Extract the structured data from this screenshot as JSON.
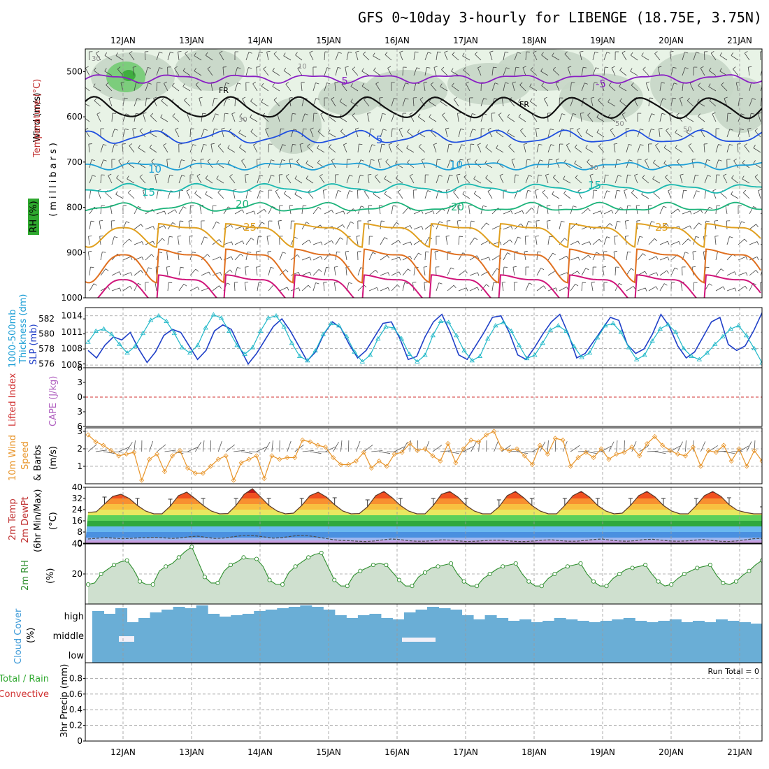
{
  "title": "GFS 0~10day 3-hourly for LIBENGE (18.75E, 3.75N)",
  "dates": [
    "12JAN",
    "13JAN",
    "14JAN",
    "15JAN",
    "16JAN",
    "17JAN",
    "18JAN",
    "19JAN",
    "20JAN",
    "21JAN"
  ],
  "run_total_label": "Run Total = 0",
  "colors": {
    "temp_purple": "#8a1fc4",
    "temp_blue": "#1f4fe0",
    "temp_cyan": "#1e9fd6",
    "temp_teal": "#19b8b0",
    "temp_green": "#1cb37a",
    "temp_gold": "#e0a020",
    "temp_orange": "#e07020",
    "temp_magenta": "#d0157a",
    "thickness": "#2040c8",
    "slp": "#20b8c8",
    "wind10": "#e8952a",
    "rh2m": "#2f8f2f",
    "cloud": "#6aaed6",
    "lifted_zero": "#d03030"
  },
  "chart_data": [
    {
      "panel": "upper-air",
      "type": "line",
      "ylabel_lines": [
        "Wind (m/s)",
        "Temperature (°C)",
        "RH (%)"
      ],
      "ylabel_units": "(millibars)",
      "y_ticks": [
        500,
        600,
        700,
        800,
        900,
        1000
      ],
      "ylim": [
        450,
        1000
      ],
      "isotherm_labels": [
        {
          "text": "-5",
          "p": 515
        },
        {
          "text": "-5",
          "p": 522
        },
        {
          "text": "5",
          "p": 650
        },
        {
          "text": "10",
          "p": 712
        },
        {
          "text": "10",
          "p": 705
        },
        {
          "text": "15",
          "p": 762
        },
        {
          "text": "15",
          "p": 755
        },
        {
          "text": "20",
          "p": 800
        },
        {
          "text": "20",
          "p": 800
        },
        {
          "text": "25",
          "p": 845
        },
        {
          "text": "25",
          "p": 845
        },
        {
          "text": "FR",
          "p": 555
        },
        {
          "text": "FR",
          "p": 575
        }
      ],
      "rh_contour_labels": [
        "30",
        "10",
        "30",
        "50",
        "50",
        "30"
      ],
      "isotherm_levels": [
        {
          "level": "-5",
          "p": 515,
          "color": "temp_purple"
        },
        {
          "level": "0",
          "p": 580,
          "color": "black"
        },
        {
          "level": "5",
          "p": 645,
          "color": "temp_blue"
        },
        {
          "level": "10",
          "p": 708,
          "color": "temp_cyan"
        },
        {
          "level": "15",
          "p": 758,
          "color": "temp_teal"
        },
        {
          "level": "20",
          "p": 800,
          "color": "temp_green"
        }
      ]
    },
    {
      "panel": "thickness-slp",
      "type": "line",
      "ylabel_left": [
        "1000-500mb",
        "Thickness (dm)"
      ],
      "ylabel_right": "SLP (mb)",
      "left_ticks": [
        576,
        578,
        580,
        582
      ],
      "right_ticks": [
        1005,
        1008,
        1011,
        1014
      ],
      "left_ylim": [
        575.5,
        583.5
      ],
      "right_ylim": [
        1004.5,
        1015.5
      ],
      "series": [
        {
          "name": "Thickness",
          "values": [
            577.8,
            576.8,
            578.5,
            579.6,
            579.2,
            580.2,
            578,
            576.2,
            577.6,
            579.8,
            580.6,
            580.2,
            578.4,
            576.6,
            577.8,
            580.4,
            581.2,
            580.6,
            578.2,
            576,
            577.4,
            579.2,
            581,
            582,
            580.4,
            578.4,
            576.4,
            577.6,
            580,
            581.6,
            580.8,
            578.6,
            576.8,
            577.8,
            579.6,
            581.4,
            581.6,
            579.4,
            576.6,
            577,
            579.6,
            581.6,
            582.6,
            580.2,
            577.2,
            576.6,
            578.4,
            580.2,
            582.2,
            582.4,
            580.2,
            577.2,
            576.6,
            578.2,
            580,
            581.6,
            582.6,
            580,
            576.8,
            577.4,
            579,
            580.6,
            582.2,
            581.8,
            578.6,
            577.4,
            578,
            580,
            582.6,
            581,
            578.4,
            576.8,
            577.6,
            579.6,
            581.6,
            582.2,
            578.6,
            577.8,
            578.4,
            580.4,
            582.8
          ]
        },
        {
          "name": "SLP",
          "values": [
            1009.2,
            1011.2,
            1011.6,
            1010.6,
            1008.8,
            1007.2,
            1008.4,
            1010.8,
            1013.2,
            1014,
            1013,
            1010.8,
            1008.2,
            1007.2,
            1008.6,
            1011.8,
            1014.2,
            1013.6,
            1011.2,
            1008.6,
            1007,
            1008.2,
            1011.2,
            1013.6,
            1014,
            1012,
            1009,
            1006.6,
            1005.8,
            1007.6,
            1010.6,
            1012.6,
            1012.2,
            1010.2,
            1007.4,
            1005.6,
            1006.8,
            1009.8,
            1012,
            1011.8,
            1009.8,
            1007,
            1005.6,
            1006.8,
            1010.4,
            1013,
            1012.8,
            1010.4,
            1007.6,
            1005.8,
            1006.6,
            1009.8,
            1012.2,
            1012.8,
            1011.2,
            1008.6,
            1006.2,
            1006.8,
            1009,
            1011.4,
            1012.2,
            1011.2,
            1008.4,
            1006.4,
            1007.2,
            1010,
            1012.2,
            1012.6,
            1011,
            1008.2,
            1006,
            1006.8,
            1009.4,
            1011.6,
            1012.4,
            1011,
            1008,
            1006.6,
            1006,
            1007.2,
            1008.8,
            1010.2,
            1011.6,
            1012.2,
            1010.4,
            1008,
            1005.4
          ]
        }
      ]
    },
    {
      "panel": "lifted-cape",
      "type": "line",
      "ylabel_left": "Lifted Index",
      "ylabel_right": "CAPE (J/kg)",
      "y_ticks": [
        -6,
        -3,
        0,
        3,
        6
      ],
      "y_tick_labels": [
        "6",
        "3",
        "0",
        "3",
        "6"
      ],
      "ylim": [
        -6,
        6
      ]
    },
    {
      "panel": "wind10m",
      "type": "line",
      "ylabel": [
        "10m Wind",
        "Speed",
        "& Barbs"
      ],
      "units": "(m/s)",
      "y_ticks": [
        1,
        2,
        3
      ],
      "ylim": [
        0,
        3.2
      ],
      "series": [
        {
          "name": "10m Wind Speed",
          "values": [
            2.8,
            2.4,
            2.2,
            1.9,
            1.6,
            1.7,
            1.8,
            0.2,
            1.4,
            1.7,
            0.7,
            1.6,
            1.9,
            0.9,
            0.6,
            0.6,
            1.0,
            1.4,
            1.6,
            0.2,
            1.2,
            1.4,
            1.6,
            0.3,
            1.6,
            1.4,
            1.5,
            1.5,
            2.5,
            2.4,
            2.2,
            2.1,
            1.5,
            1.1,
            1.1,
            1.3,
            1.8,
            0.9,
            1.3,
            1.0,
            1.7,
            1.8,
            2.3,
            1.9,
            2.0,
            1.6,
            1.3,
            2.3,
            1.2,
            2.0,
            2.5,
            2.4,
            2.8,
            3.0,
            2.0,
            1.9,
            2.0,
            1.6,
            1.1,
            2.2,
            1.7,
            2.6,
            2.5,
            1.0,
            1.5,
            1.8,
            1.5,
            2.0,
            1.4,
            1.7,
            1.8,
            2.1,
            1.6,
            2.3,
            2.7,
            2.2,
            1.9,
            1.7,
            1.6,
            2.1,
            1.0,
            1.9,
            1.8,
            2.2,
            1.3,
            2.0,
            1.0,
            1.9,
            1.3
          ]
        }
      ]
    },
    {
      "panel": "temp2m",
      "type": "area",
      "ylabel": [
        "2m Temp",
        "2m DewPt",
        "(6hr Min/Max)"
      ],
      "units": "(°C)",
      "y_ticks": [
        0,
        8,
        16,
        24,
        32,
        40
      ],
      "ylim": [
        0,
        40
      ],
      "series": [
        {
          "name": "2m Temp",
          "values": [
            22,
            22.5,
            28,
            33.5,
            35,
            32,
            27,
            23,
            21,
            21,
            26.5,
            34,
            36.5,
            32,
            27,
            23,
            21,
            21.2,
            27,
            35,
            39,
            33,
            27,
            23,
            21,
            21.5,
            27,
            34,
            36.5,
            33,
            27.5,
            23,
            21,
            21.2,
            26,
            34,
            37,
            32.5,
            27,
            23,
            21,
            21,
            27,
            35,
            37,
            33,
            27,
            23,
            21,
            21,
            26,
            34,
            37,
            32.5,
            27,
            23,
            21,
            21,
            27,
            34,
            37,
            33,
            27,
            23,
            21,
            21.5,
            27,
            34,
            37,
            33,
            27,
            23,
            21,
            21,
            27,
            34,
            37,
            33.5,
            27.5,
            23.5,
            22,
            21,
            21
          ]
        },
        {
          "name": "2m DewPt",
          "values": [
            3,
            3.5,
            4,
            3.6,
            3.2,
            3.4,
            3.8,
            4,
            4.2,
            3.8,
            3.4,
            3.8,
            4.6,
            5,
            4.2,
            3.4,
            3.6,
            4.4,
            5.2,
            5.6,
            5.2,
            4.4,
            3.6,
            4,
            4.8,
            5.6,
            5.4,
            4.6,
            3.6,
            2.6,
            2,
            1.8,
            1.4,
            1.2,
            1.6,
            2.4,
            3,
            2.6,
            1.8,
            1.4,
            1.4,
            1.8,
            2.4,
            2.2,
            1.6,
            1.2,
            1.4,
            1.8,
            2.2,
            2.2,
            1.6,
            1.2,
            1.2,
            1.6,
            2.2,
            2.4,
            1.8,
            1.4,
            1.4,
            2,
            2.6,
            3,
            2.2,
            1.6,
            1.4,
            1.8,
            2.6,
            2.8,
            2.2,
            1.6,
            1.4,
            1.6,
            2.2,
            2.6,
            2,
            1.4,
            1.2,
            1.6,
            2.4,
            3.2,
            3.4
          ]
        }
      ]
    },
    {
      "panel": "rh2m",
      "type": "area",
      "ylabel": "2m RH",
      "units": "(%)",
      "y_ticks": [
        20,
        40
      ],
      "ylim": [
        0,
        40
      ],
      "series": [
        {
          "name": "2m RH",
          "values": [
            13,
            14,
            20,
            23,
            26,
            28,
            29,
            23,
            15,
            13,
            13,
            22,
            25,
            27,
            31,
            35,
            38,
            28,
            18,
            14,
            14,
            22,
            26,
            28,
            31,
            30,
            30,
            25,
            16,
            13,
            13,
            21,
            25,
            28,
            31,
            33,
            34,
            25,
            16,
            12,
            12,
            19,
            22,
            24,
            26,
            27,
            26,
            21,
            16,
            12,
            12,
            18,
            21,
            24,
            25,
            26,
            27,
            20,
            15,
            12,
            12,
            17,
            20,
            23,
            25,
            26,
            27,
            20,
            15,
            12,
            12,
            17,
            20,
            23,
            25,
            26,
            27,
            20,
            15,
            12,
            12,
            17,
            20,
            23,
            24,
            25,
            26,
            20,
            15,
            12,
            13,
            17,
            20,
            22,
            24,
            25,
            26,
            19,
            14,
            13,
            15,
            19,
            22,
            26,
            29
          ]
        }
      ]
    },
    {
      "panel": "cloud-cover",
      "type": "area",
      "ylabel": "Cloud Cover",
      "units": "(%)",
      "y_tick_labels": [
        "high",
        "middle",
        "low"
      ]
    },
    {
      "panel": "precip",
      "type": "bar",
      "ylabel_left": [
        "Total / Rain",
        "Convective"
      ],
      "ylabel": "3hr Precip (mm)",
      "y_ticks": [
        0,
        0.2,
        0.4,
        0.6,
        0.8
      ],
      "ylim": [
        0,
        1
      ],
      "values": []
    }
  ]
}
